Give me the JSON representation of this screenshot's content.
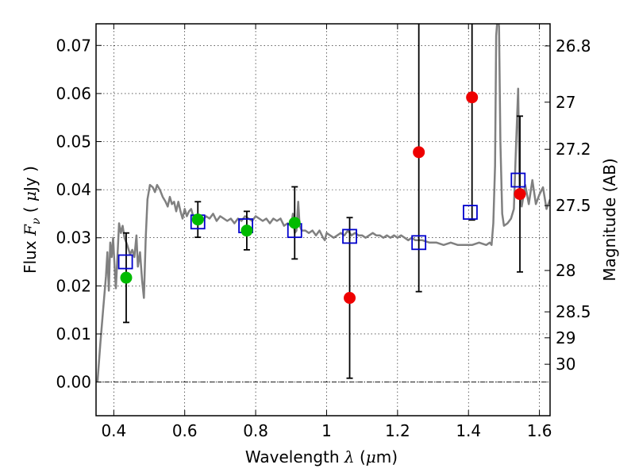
{
  "chart_data": {
    "type": "scatter",
    "xlabel": "Wavelength",
    "xlabel_symbol": "λ",
    "xlabel_unit_open": "(",
    "xlabel_unit_mu": "μ",
    "xlabel_unit_rest": "m)",
    "ylabel": "Flux",
    "ylabel_symbol": "F",
    "ylabel_sub": "ν",
    "ylabel_unit_open": "(",
    "ylabel_unit_mu": "μ",
    "ylabel_unit_rest": "Jy )",
    "y2label": "Magnitude (AB)",
    "xlim": [
      0.35,
      1.63
    ],
    "ylim": [
      -0.007,
      0.0745
    ],
    "grid": true,
    "x_ticks": [
      0.4,
      0.6,
      0.8,
      1.0,
      1.2,
      1.4,
      1.6
    ],
    "x_tick_labels": [
      "0.4",
      "0.6",
      "0.8",
      "1",
      "1.2",
      "1.4",
      "1.6"
    ],
    "y_ticks": [
      0.0,
      0.01,
      0.02,
      0.03,
      0.04,
      0.05,
      0.06,
      0.07
    ],
    "y_tick_labels": [
      "0.00",
      "0.01",
      "0.02",
      "0.03",
      "0.04",
      "0.05",
      "0.06",
      "0.07"
    ],
    "y2_ticks": [
      {
        "label": "26.8",
        "flux": 0.0699
      },
      {
        "label": "27",
        "flux": 0.0582
      },
      {
        "label": "27.2",
        "flux": 0.0484
      },
      {
        "label": "27.5",
        "flux": 0.0367
      },
      {
        "label": "28",
        "flux": 0.0232
      },
      {
        "label": "28.5",
        "flux": 0.0146
      },
      {
        "label": "29",
        "flux": 0.0092
      },
      {
        "label": "30",
        "flux": 0.0037
      }
    ],
    "colors": {
      "model": "#808080",
      "green_points": "#00bb00",
      "red_points": "#ee0000",
      "model_boxes": "#0000cc",
      "errorbar": "#000000"
    },
    "series": [
      {
        "kind": "line",
        "points": [
          [
            0.354,
            0.0
          ],
          [
            0.362,
            0.008
          ],
          [
            0.37,
            0.015
          ],
          [
            0.378,
            0.022
          ],
          [
            0.382,
            0.027
          ],
          [
            0.386,
            0.019
          ],
          [
            0.39,
            0.029
          ],
          [
            0.394,
            0.026
          ],
          [
            0.398,
            0.03
          ],
          [
            0.402,
            0.0245
          ],
          [
            0.406,
            0.0195
          ],
          [
            0.41,
            0.0255
          ],
          [
            0.415,
            0.033
          ],
          [
            0.42,
            0.031
          ],
          [
            0.425,
            0.0325
          ],
          [
            0.43,
            0.03
          ],
          [
            0.438,
            0.0285
          ],
          [
            0.446,
            0.0265
          ],
          [
            0.452,
            0.0275
          ],
          [
            0.458,
            0.026
          ],
          [
            0.464,
            0.0305
          ],
          [
            0.468,
            0.024
          ],
          [
            0.474,
            0.027
          ],
          [
            0.48,
            0.021
          ],
          [
            0.485,
            0.0175
          ],
          [
            0.49,
            0.03
          ],
          [
            0.495,
            0.038
          ],
          [
            0.502,
            0.041
          ],
          [
            0.51,
            0.0405
          ],
          [
            0.516,
            0.0395
          ],
          [
            0.522,
            0.041
          ],
          [
            0.53,
            0.04
          ],
          [
            0.538,
            0.0385
          ],
          [
            0.546,
            0.0375
          ],
          [
            0.552,
            0.0365
          ],
          [
            0.558,
            0.0385
          ],
          [
            0.564,
            0.037
          ],
          [
            0.57,
            0.0375
          ],
          [
            0.576,
            0.0355
          ],
          [
            0.582,
            0.0375
          ],
          [
            0.588,
            0.0355
          ],
          [
            0.594,
            0.034
          ],
          [
            0.6,
            0.036
          ],
          [
            0.606,
            0.0345
          ],
          [
            0.612,
            0.0355
          ],
          [
            0.618,
            0.036
          ],
          [
            0.624,
            0.0345
          ],
          [
            0.632,
            0.034
          ],
          [
            0.64,
            0.0345
          ],
          [
            0.65,
            0.0335
          ],
          [
            0.66,
            0.0345
          ],
          [
            0.67,
            0.034
          ],
          [
            0.68,
            0.035
          ],
          [
            0.69,
            0.0335
          ],
          [
            0.7,
            0.0345
          ],
          [
            0.71,
            0.034
          ],
          [
            0.72,
            0.0335
          ],
          [
            0.73,
            0.034
          ],
          [
            0.74,
            0.033
          ],
          [
            0.75,
            0.034
          ],
          [
            0.76,
            0.0335
          ],
          [
            0.77,
            0.0345
          ],
          [
            0.78,
            0.034
          ],
          [
            0.79,
            0.0335
          ],
          [
            0.8,
            0.0345
          ],
          [
            0.81,
            0.034
          ],
          [
            0.82,
            0.0335
          ],
          [
            0.83,
            0.034
          ],
          [
            0.84,
            0.033
          ],
          [
            0.85,
            0.034
          ],
          [
            0.86,
            0.0335
          ],
          [
            0.87,
            0.034
          ],
          [
            0.88,
            0.0325
          ],
          [
            0.89,
            0.033
          ],
          [
            0.9,
            0.0325
          ],
          [
            0.905,
            0.035
          ],
          [
            0.91,
            0.031
          ],
          [
            0.915,
            0.0315
          ],
          [
            0.92,
            0.0375
          ],
          [
            0.924,
            0.0325
          ],
          [
            0.93,
            0.0315
          ],
          [
            0.94,
            0.0315
          ],
          [
            0.95,
            0.031
          ],
          [
            0.96,
            0.0315
          ],
          [
            0.97,
            0.0305
          ],
          [
            0.98,
            0.0315
          ],
          [
            0.99,
            0.03
          ],
          [
            0.995,
            0.0295
          ],
          [
            1.0,
            0.031
          ],
          [
            1.01,
            0.0305
          ],
          [
            1.02,
            0.03
          ],
          [
            1.03,
            0.0305
          ],
          [
            1.04,
            0.031
          ],
          [
            1.05,
            0.0305
          ],
          [
            1.06,
            0.0315
          ],
          [
            1.07,
            0.0305
          ],
          [
            1.08,
            0.031
          ],
          [
            1.09,
            0.0305
          ],
          [
            1.1,
            0.0305
          ],
          [
            1.11,
            0.03
          ],
          [
            1.12,
            0.0305
          ],
          [
            1.13,
            0.031
          ],
          [
            1.14,
            0.0305
          ],
          [
            1.15,
            0.0305
          ],
          [
            1.16,
            0.03
          ],
          [
            1.17,
            0.0305
          ],
          [
            1.18,
            0.03
          ],
          [
            1.19,
            0.0305
          ],
          [
            1.2,
            0.03
          ],
          [
            1.21,
            0.0305
          ],
          [
            1.22,
            0.03
          ],
          [
            1.23,
            0.0295
          ],
          [
            1.24,
            0.03
          ],
          [
            1.25,
            0.0295
          ],
          [
            1.27,
            0.0295
          ],
          [
            1.29,
            0.029
          ],
          [
            1.31,
            0.029
          ],
          [
            1.33,
            0.0285
          ],
          [
            1.35,
            0.029
          ],
          [
            1.37,
            0.0285
          ],
          [
            1.39,
            0.0285
          ],
          [
            1.41,
            0.0285
          ],
          [
            1.43,
            0.029
          ],
          [
            1.45,
            0.0285
          ],
          [
            1.46,
            0.029
          ],
          [
            1.465,
            0.0285
          ],
          [
            1.47,
            0.033
          ],
          [
            1.475,
            0.045
          ],
          [
            1.478,
            0.072
          ],
          [
            1.482,
            0.076
          ],
          [
            1.486,
            0.074
          ],
          [
            1.49,
            0.05
          ],
          [
            1.495,
            0.035
          ],
          [
            1.5,
            0.0325
          ],
          [
            1.51,
            0.033
          ],
          [
            1.52,
            0.034
          ],
          [
            1.528,
            0.036
          ],
          [
            1.534,
            0.049
          ],
          [
            1.54,
            0.061
          ],
          [
            1.544,
            0.04
          ],
          [
            1.55,
            0.0365
          ],
          [
            1.56,
            0.041
          ],
          [
            1.57,
            0.037
          ],
          [
            1.58,
            0.042
          ],
          [
            1.59,
            0.037
          ],
          [
            1.6,
            0.039
          ],
          [
            1.61,
            0.0405
          ],
          [
            1.62,
            0.036
          ],
          [
            1.63,
            0.038
          ]
        ]
      },
      {
        "kind": "points",
        "points": [
          {
            "x": 0.435,
            "y": 0.0217,
            "yerr": 0.0093
          },
          {
            "x": 0.637,
            "y": 0.0338,
            "yerr": 0.0037
          },
          {
            "x": 0.775,
            "y": 0.0315,
            "yerr": 0.004
          },
          {
            "x": 0.91,
            "y": 0.0331,
            "yerr": 0.0075
          }
        ]
      },
      {
        "kind": "points",
        "points": [
          {
            "x": 1.065,
            "y": 0.0175,
            "yerr": 0.0167
          },
          {
            "x": 1.26,
            "y": 0.0478,
            "yerr": 0.029
          },
          {
            "x": 1.41,
            "y": 0.0592,
            "yerr": 0.0255
          },
          {
            "x": 1.545,
            "y": 0.0391,
            "yerr": 0.0162
          }
        ]
      },
      {
        "kind": "boxes",
        "points": [
          {
            "x": 0.433,
            "y": 0.025
          },
          {
            "x": 0.637,
            "y": 0.0333
          },
          {
            "x": 0.772,
            "y": 0.0325
          },
          {
            "x": 0.91,
            "y": 0.0315
          },
          {
            "x": 1.065,
            "y": 0.0303
          },
          {
            "x": 1.26,
            "y": 0.029
          },
          {
            "x": 1.405,
            "y": 0.0353
          },
          {
            "x": 1.54,
            "y": 0.042
          }
        ]
      }
    ]
  }
}
